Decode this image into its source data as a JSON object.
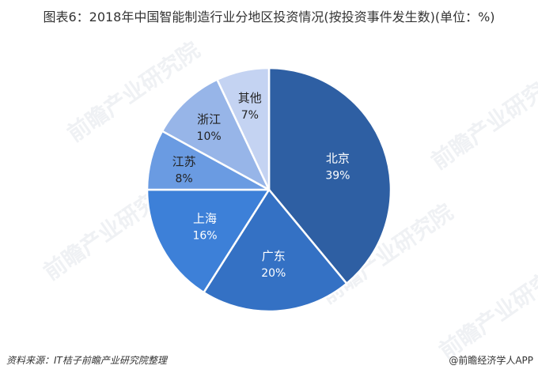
{
  "title": "图表6：2018年中国智能制造行业分地区投资情况(按投资事件发生数)(单位：%)",
  "source": "资料来源：IT桔子前瞻产业研究院整理",
  "credit": "@前瞻经济学人APP",
  "watermark": "前瞻产业研究院",
  "chart_data": {
    "type": "pie",
    "title": "图表6：2018年中国智能制造行业分地区投资情况(按投资事件发生数)(单位：%)",
    "unit": "%",
    "start_angle": "12 o'clock, clockwise",
    "categories": [
      "北京",
      "广东",
      "上海",
      "江苏",
      "浙江",
      "其他"
    ],
    "values": [
      39,
      20,
      16,
      8,
      10,
      7
    ],
    "colors": [
      "#2E5FA3",
      "#3471C4",
      "#3D80D8",
      "#6A9BE2",
      "#97B5E8",
      "#C4D3F2"
    ],
    "label_colors": [
      "#ffffff",
      "#ffffff",
      "#ffffff",
      "#222222",
      "#222222",
      "#222222"
    ],
    "legend": "none (labels inside slices)"
  }
}
